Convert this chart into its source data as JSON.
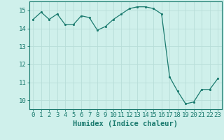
{
  "x": [
    0,
    1,
    2,
    3,
    4,
    5,
    6,
    7,
    8,
    9,
    10,
    11,
    12,
    13,
    14,
    15,
    16,
    17,
    18,
    19,
    20,
    21,
    22,
    23
  ],
  "y": [
    14.5,
    14.9,
    14.5,
    14.8,
    14.2,
    14.2,
    14.7,
    14.6,
    13.9,
    14.1,
    14.5,
    14.8,
    15.1,
    15.2,
    15.2,
    15.1,
    14.8,
    11.3,
    10.5,
    9.8,
    9.9,
    10.6,
    10.6,
    11.2
  ],
  "xlabel": "Humidex (Indice chaleur)",
  "ylim": [
    9.5,
    15.5
  ],
  "xlim": [
    -0.5,
    23.5
  ],
  "yticks": [
    10,
    11,
    12,
    13,
    14,
    15
  ],
  "xticks": [
    0,
    1,
    2,
    3,
    4,
    5,
    6,
    7,
    8,
    9,
    10,
    11,
    12,
    13,
    14,
    15,
    16,
    17,
    18,
    19,
    20,
    21,
    22,
    23
  ],
  "line_color": "#1a7a6e",
  "marker_color": "#1a7a6e",
  "bg_color": "#cff0eb",
  "grid_color": "#b8ddd8",
  "axis_color": "#1a7a6e",
  "tick_label_color": "#1a7a6e",
  "xlabel_color": "#1a7a6e",
  "font_size_ticks": 6.5,
  "font_size_xlabel": 7.5
}
